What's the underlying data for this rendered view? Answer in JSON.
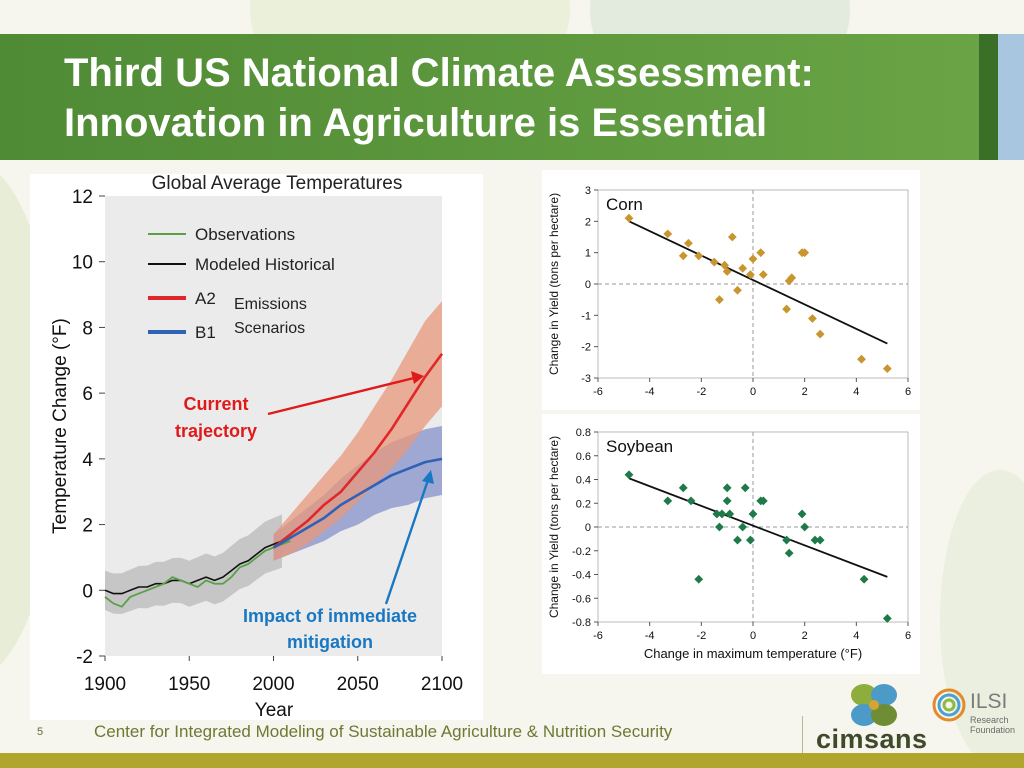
{
  "slide": {
    "title_line1": "Third US National Climate Assessment:",
    "title_line2": "Innovation in Agriculture is Essential",
    "slide_number": "5",
    "footer_text": "Center for Integrated Modeling of Sustainable Agriculture & Nutrition Security",
    "logo_cimsans": "cimsans",
    "logo_ilsi": "ILSI",
    "logo_ilsi_sub1": "Research",
    "logo_ilsi_sub2": "Foundation"
  },
  "colors": {
    "banner_green": "#5a9640",
    "observations": "#5aa047",
    "modeled": "#111111",
    "a2": "#e0282b",
    "a2_band": "#e8977b",
    "b1": "#2f62b4",
    "b1_band": "#8592c9",
    "corn_marker": "#c8952f",
    "soybean_marker": "#1f7a4a",
    "callout_red": "#e01a1a",
    "callout_blue": "#1a78c2"
  },
  "chart_data": [
    {
      "type": "line",
      "title": "Global Average Temperatures",
      "xlabel": "Year",
      "ylabel": "Temperature Change (°F)",
      "xlim": [
        1900,
        2100
      ],
      "ylim": [
        -2,
        12
      ],
      "xticks": [
        "1900",
        "1950",
        "2000",
        "2050",
        "2100"
      ],
      "yticks": [
        "-2",
        "0",
        "2",
        "4",
        "6",
        "8",
        "10",
        "12"
      ],
      "legend": {
        "placement": "top-left",
        "entries": [
          "Observations",
          "Modeled Historical",
          "A2",
          "B1"
        ],
        "group_label": "Emissions Scenarios"
      },
      "annotations": {
        "current": "Current trajectory",
        "mitigation": "Impact of immediate mitigation"
      },
      "series": [
        {
          "name": "Observations",
          "x": [
            1900,
            1905,
            1910,
            1915,
            1920,
            1925,
            1930,
            1935,
            1940,
            1945,
            1950,
            1955,
            1960,
            1965,
            1970,
            1975,
            1980,
            1985,
            1990,
            1995,
            2000,
            2005,
            2010
          ],
          "values": [
            -0.2,
            -0.4,
            -0.5,
            -0.2,
            -0.1,
            0.0,
            0.1,
            0.2,
            0.4,
            0.3,
            0.2,
            0.1,
            0.3,
            0.2,
            0.2,
            0.4,
            0.7,
            0.8,
            1.0,
            1.2,
            1.3,
            1.4,
            1.5
          ]
        },
        {
          "name": "Modeled Historical",
          "x": [
            1900,
            1905,
            1910,
            1915,
            1920,
            1925,
            1930,
            1935,
            1940,
            1945,
            1950,
            1955,
            1960,
            1965,
            1970,
            1975,
            1980,
            1985,
            1990,
            1995,
            2000,
            2005
          ],
          "values": [
            0.0,
            -0.1,
            -0.1,
            0.0,
            0.1,
            0.1,
            0.2,
            0.2,
            0.3,
            0.3,
            0.2,
            0.3,
            0.4,
            0.3,
            0.4,
            0.6,
            0.8,
            0.9,
            1.1,
            1.3,
            1.4,
            1.5
          ]
        },
        {
          "name": "A2",
          "x": [
            2000,
            2010,
            2020,
            2030,
            2040,
            2050,
            2060,
            2070,
            2080,
            2090,
            2100
          ],
          "values": [
            1.3,
            1.7,
            2.1,
            2.6,
            3.0,
            3.6,
            4.2,
            4.9,
            5.7,
            6.5,
            7.2
          ],
          "band_low": [
            0.9,
            1.1,
            1.4,
            1.8,
            2.2,
            2.7,
            3.2,
            3.7,
            4.3,
            5.0,
            5.6
          ],
          "band_high": [
            1.7,
            2.3,
            2.9,
            3.5,
            4.1,
            4.8,
            5.6,
            6.4,
            7.3,
            8.2,
            8.8
          ]
        },
        {
          "name": "B1",
          "x": [
            2000,
            2010,
            2020,
            2030,
            2040,
            2050,
            2060,
            2070,
            2080,
            2090,
            2100
          ],
          "values": [
            1.3,
            1.6,
            1.9,
            2.2,
            2.6,
            2.9,
            3.2,
            3.5,
            3.7,
            3.9,
            4.0
          ],
          "band_low": [
            0.9,
            1.1,
            1.3,
            1.5,
            1.8,
            2.0,
            2.3,
            2.5,
            2.6,
            2.8,
            2.9
          ],
          "band_high": [
            1.7,
            2.1,
            2.5,
            2.9,
            3.4,
            3.8,
            4.2,
            4.5,
            4.7,
            4.9,
            5.0
          ]
        }
      ]
    },
    {
      "type": "scatter",
      "title": "Corn",
      "xlabel": "",
      "ylabel": "Change in Yield (tons per hectare)",
      "xlim": [
        -6,
        6
      ],
      "ylim": [
        -3,
        3
      ],
      "xticks": [
        "-6",
        "-4",
        "-2",
        "0",
        "2",
        "4",
        "6"
      ],
      "yticks": [
        "-3",
        "-2",
        "-1",
        "0",
        "1",
        "2",
        "3"
      ],
      "x": [
        -4.8,
        -3.3,
        -2.7,
        -2.5,
        -2.1,
        -1.5,
        -1.3,
        -1.1,
        -1.0,
        -0.8,
        -0.6,
        -0.4,
        -0.1,
        0.0,
        0.3,
        0.4,
        1.3,
        1.4,
        1.5,
        1.9,
        2.0,
        2.3,
        2.6,
        4.2,
        5.2
      ],
      "y": [
        2.1,
        1.6,
        0.9,
        1.3,
        0.9,
        0.7,
        -0.5,
        0.6,
        0.4,
        1.5,
        -0.2,
        0.5,
        0.3,
        0.8,
        1.0,
        0.3,
        -0.8,
        0.1,
        0.2,
        1.0,
        1.0,
        -1.1,
        -1.6,
        -2.4,
        -2.7
      ],
      "fit_line": {
        "x": [
          -4.8,
          5.2
        ],
        "y": [
          2.0,
          -1.9
        ]
      }
    },
    {
      "type": "scatter",
      "title": "Soybean",
      "xlabel": "Change in maximum temperature (°F)",
      "ylabel": "Change in Yield (tons per hectare)",
      "xlim": [
        -6,
        6
      ],
      "ylim": [
        -0.8,
        0.8
      ],
      "xticks": [
        "-6",
        "-4",
        "-2",
        "0",
        "2",
        "4",
        "6"
      ],
      "yticks": [
        "-0.8",
        "-0.6",
        "-0.4",
        "-0.2",
        "0",
        "0.2",
        "0.4",
        "0.6",
        "0.8"
      ],
      "x": [
        -4.8,
        -3.3,
        -2.7,
        -2.4,
        -2.1,
        -1.4,
        -1.3,
        -1.2,
        -1.0,
        -1.0,
        -0.9,
        -0.6,
        -0.4,
        -0.3,
        -0.1,
        0.0,
        0.3,
        0.4,
        1.3,
        1.4,
        1.9,
        2.0,
        2.4,
        2.6,
        4.3,
        5.2
      ],
      "y": [
        0.44,
        0.22,
        0.33,
        0.22,
        -0.44,
        0.11,
        0.0,
        0.11,
        0.33,
        0.22,
        0.11,
        -0.11,
        0.0,
        0.33,
        -0.11,
        0.11,
        0.22,
        0.22,
        -0.11,
        -0.22,
        0.11,
        0.0,
        -0.11,
        -0.11,
        -0.44,
        -0.77
      ],
      "fit_line": {
        "x": [
          -4.8,
          5.2
        ],
        "y": [
          0.41,
          -0.42
        ]
      }
    }
  ]
}
